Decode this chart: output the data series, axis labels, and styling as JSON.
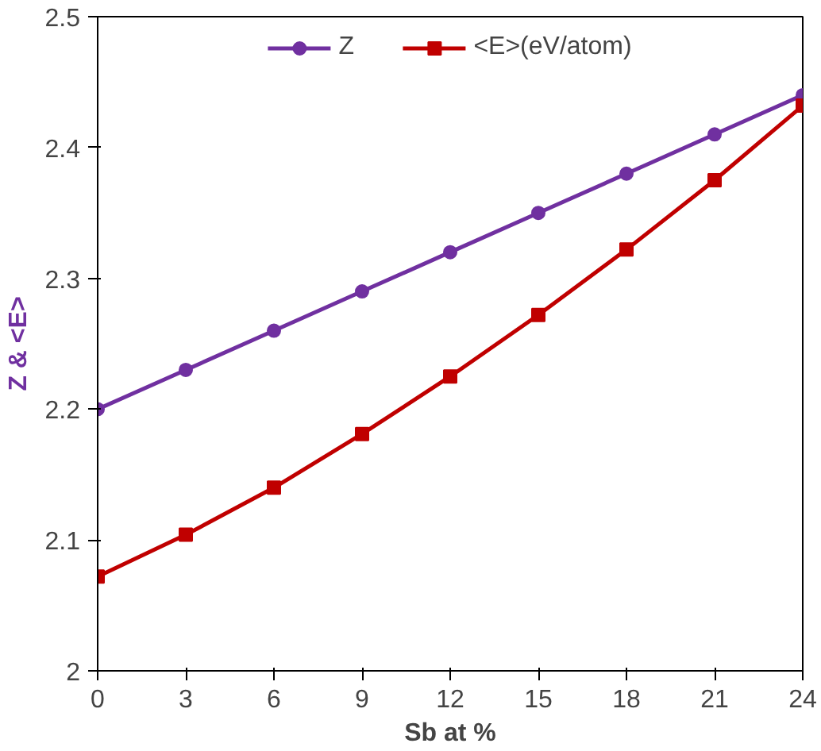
{
  "chart_data": {
    "type": "line",
    "xlabel": "Sb at %",
    "ylabel": "Z & <E>",
    "x": [
      0,
      3,
      6,
      9,
      12,
      15,
      18,
      21,
      24
    ],
    "series": [
      {
        "name": "Z",
        "color": "#7030a0",
        "marker": "circle",
        "values": [
          2.2,
          2.23,
          2.26,
          2.29,
          2.32,
          2.35,
          2.38,
          2.41,
          2.44
        ]
      },
      {
        "name": "<E>(eV/atom)",
        "color": "#c00000",
        "marker": "square",
        "values": [
          2.072,
          2.104,
          2.14,
          2.181,
          2.225,
          2.272,
          2.322,
          2.375,
          2.432
        ]
      }
    ],
    "xlim": [
      0,
      24
    ],
    "ylim": [
      2,
      2.5
    ],
    "xticks": [
      0,
      3,
      6,
      9,
      12,
      15,
      18,
      21,
      24
    ],
    "yticks": [
      2,
      2.1,
      2.2,
      2.3,
      2.4,
      2.5
    ],
    "grid": false,
    "legend": "top",
    "line_style": "solid"
  }
}
